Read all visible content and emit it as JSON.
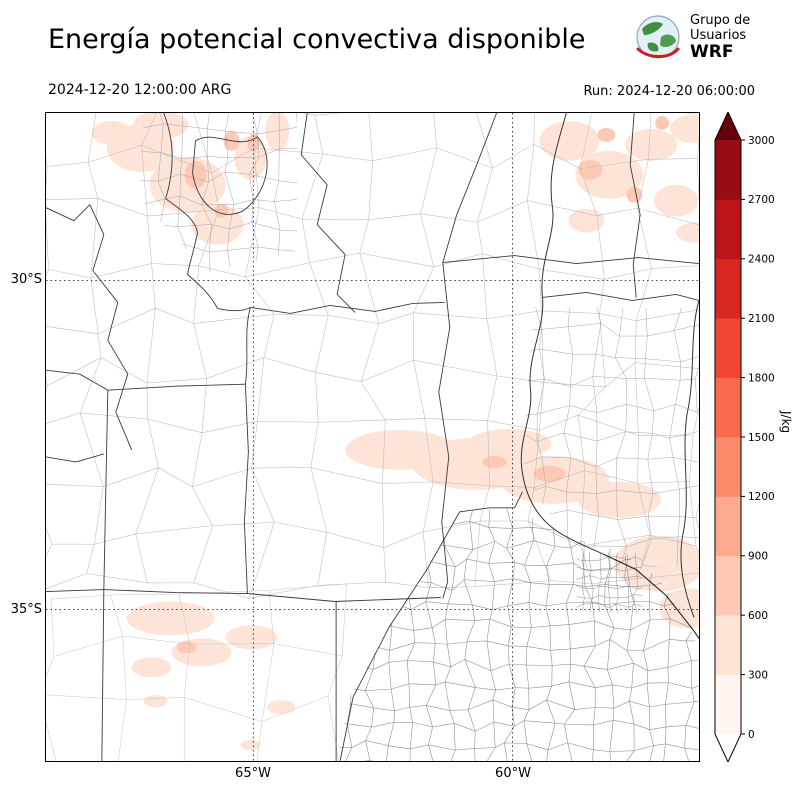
{
  "header": {
    "title": "Energía potencial convectiva disponible",
    "logo": {
      "line1": "Grupo de",
      "line2": "Usuarios",
      "line3": "WRF"
    }
  },
  "subheader": {
    "valid_time": "2024-12-20 12:00:00 ARG",
    "run_time": "Run: 2024-12-20 06:00:00"
  },
  "axes": {
    "lat": [
      {
        "text": "30°S"
      },
      {
        "text": "35°S"
      }
    ],
    "lon": [
      {
        "text": "65°W"
      },
      {
        "text": "60°W"
      }
    ]
  },
  "colorbar": {
    "label": "J/kg",
    "ticks": [
      0,
      300,
      600,
      900,
      1200,
      1500,
      1800,
      2100,
      2400,
      2700,
      3000
    ],
    "colors": [
      "#fff5f0",
      "#fee3d7",
      "#fdc9b4",
      "#fcab8f",
      "#fc8a6a",
      "#f9694c",
      "#ef4533",
      "#d92723",
      "#bb151a",
      "#980c13"
    ],
    "under_color": "#ffffff",
    "over_color": "#67000d",
    "outline_color": "#000000"
  },
  "chart_data": {
    "type": "heatmap",
    "title": "Energía potencial convectiva disponible",
    "units": "J/kg",
    "valid_time": "2024-12-20 12:00:00 ARG",
    "run_time": "2024-12-20 06:00:00",
    "colorbar_levels": [
      0,
      300,
      600,
      900,
      1200,
      1500,
      1800,
      2100,
      2400,
      2700,
      3000
    ],
    "lat_gridlines": [
      "30°S",
      "35°S"
    ],
    "lon_gridlines": [
      "65°W",
      "60°W"
    ],
    "shaded_regions": [
      {
        "area": "northwest corner, near 65°W north of 30°S",
        "value_range": "0-900"
      },
      {
        "area": "northeast, near 58-60°W north of 30°S",
        "value_range": "0-900"
      },
      {
        "area": "central band between 59°W and 63°W around 32-33°S",
        "value_range": "0-600"
      },
      {
        "area": "southwest near 64-66°W around 35-36°S",
        "value_range": "0-600"
      },
      {
        "area": "east-southeast near 57-58°W around 33-34°S",
        "value_range": "0-300"
      }
    ]
  }
}
